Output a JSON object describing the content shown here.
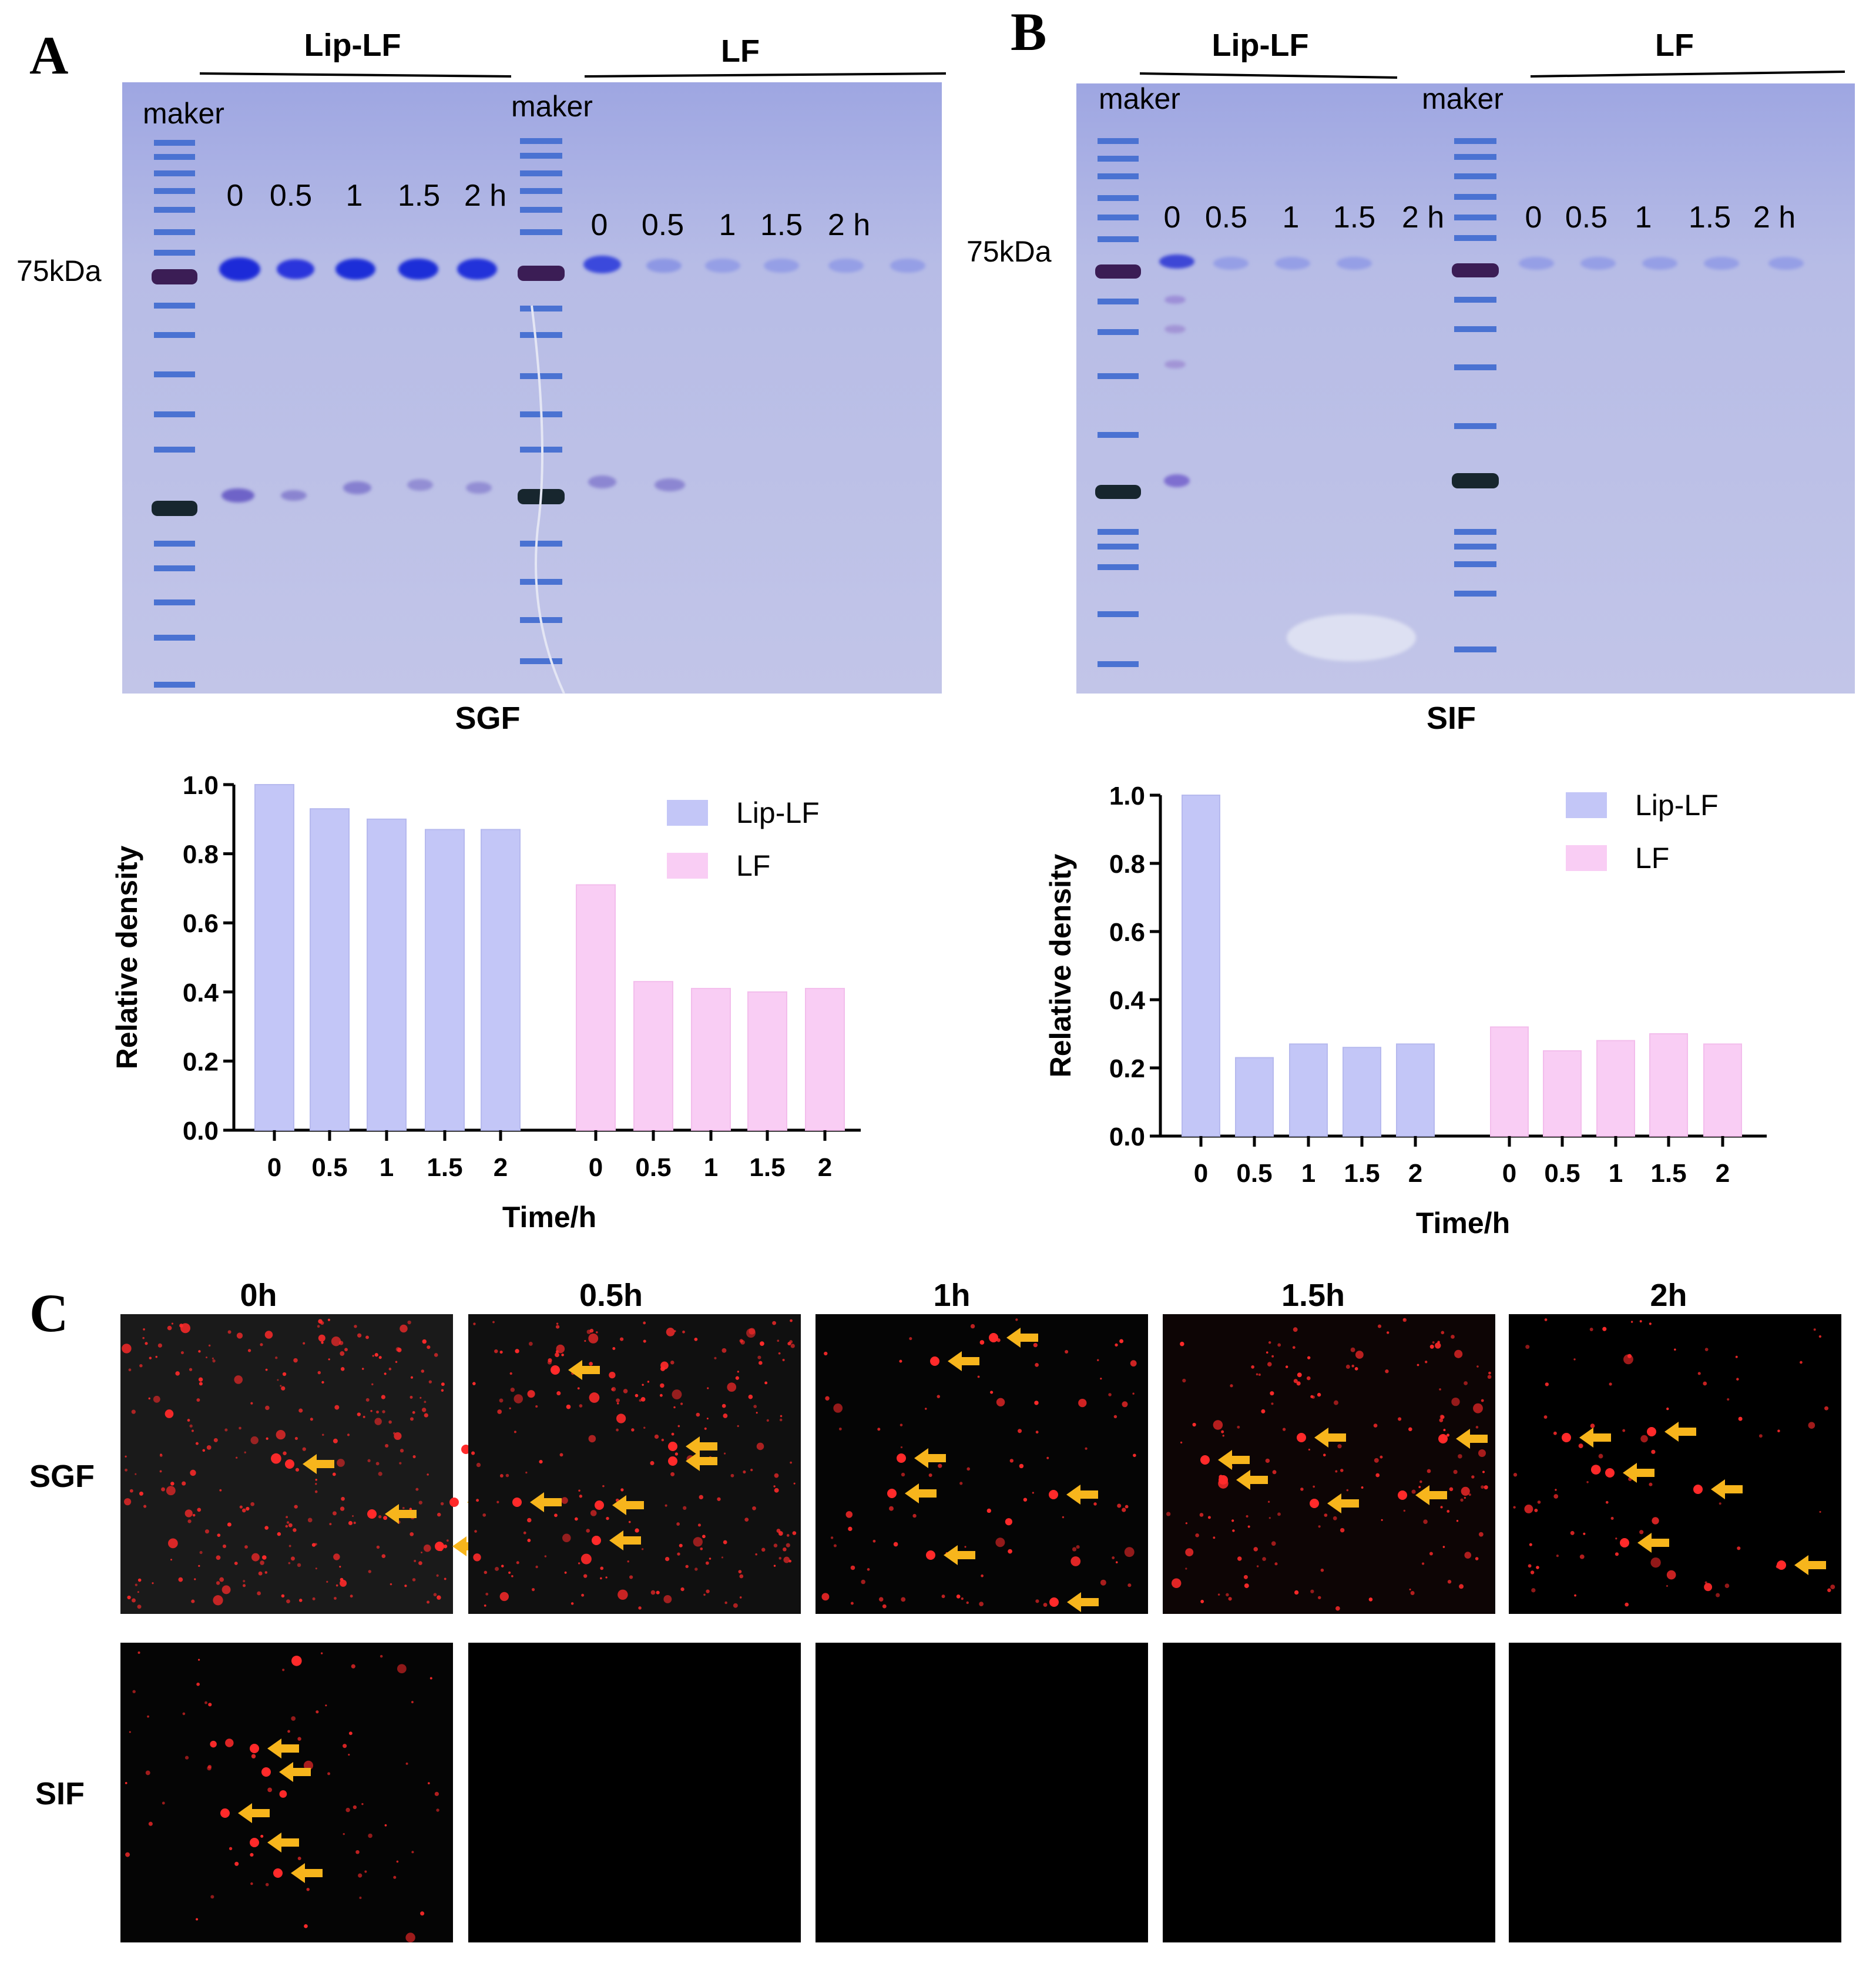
{
  "panels": {
    "A": {
      "letter": "A",
      "gel": {
        "group_labels": [
          "Lip-LF",
          "LF"
        ],
        "marker_labels": [
          "maker",
          "maker"
        ],
        "lane_labels_1": [
          "0",
          "0.5",
          "1",
          "1.5",
          "2 h"
        ],
        "lane_labels_2": [
          "0",
          "0.5",
          "1",
          "1.5",
          "2 h"
        ],
        "mw_label": "75kDa",
        "caption": "SGF"
      }
    },
    "B": {
      "letter": "B",
      "gel": {
        "group_labels": [
          "Lip-LF",
          "LF"
        ],
        "marker_labels": [
          "maker",
          "maker"
        ],
        "lane_labels_1": [
          "0",
          "0.5",
          "1",
          "1.5",
          "2 h"
        ],
        "lane_labels_2": [
          "0",
          "0.5",
          "1",
          "1.5",
          "2 h"
        ],
        "mw_label": "75kDa",
        "caption": "SIF"
      }
    },
    "C": {
      "letter": "C",
      "time_labels": [
        "0h",
        "0.5h",
        "1h",
        "1.5h",
        "2h"
      ],
      "row_labels": [
        "SGF",
        "SIF"
      ]
    }
  },
  "colors": {
    "lip_lf": "#c3c6f7",
    "lf": "#f9cdf4",
    "gel_bg": "#aab0e0",
    "marker_band": "#3a5fc8",
    "fluor_red": "#ff2a2a",
    "arrow": "#f7b51c"
  },
  "chart_data": [
    {
      "type": "bar",
      "panel": "A",
      "categories": [
        "0",
        "0.5",
        "1",
        "1.5",
        "2",
        "0",
        "0.5",
        "1",
        "1.5",
        "2"
      ],
      "series": [
        {
          "name": "Lip-LF",
          "values": [
            1.0,
            0.93,
            0.9,
            0.87,
            0.87,
            null,
            null,
            null,
            null,
            null
          ]
        },
        {
          "name": "LF",
          "values": [
            null,
            null,
            null,
            null,
            null,
            0.71,
            0.43,
            0.41,
            0.4,
            0.41
          ]
        }
      ],
      "xlabel": "Time/h",
      "ylabel": "Relative density",
      "ylim": [
        0,
        1.0
      ],
      "yticks": [
        "0.0",
        "0.2",
        "0.4",
        "0.6",
        "0.8",
        "1.0"
      ],
      "legend": "top-right",
      "grid": false
    },
    {
      "type": "bar",
      "panel": "B",
      "categories": [
        "0",
        "0.5",
        "1",
        "1.5",
        "2",
        "0",
        "0.5",
        "1",
        "1.5",
        "2"
      ],
      "series": [
        {
          "name": "Lip-LF",
          "values": [
            1.0,
            0.23,
            0.27,
            0.26,
            0.27,
            null,
            null,
            null,
            null,
            null
          ]
        },
        {
          "name": "LF",
          "values": [
            null,
            null,
            null,
            null,
            null,
            0.32,
            0.25,
            0.28,
            0.3,
            0.27
          ]
        }
      ],
      "xlabel": "Time/h",
      "ylabel": "Relative density",
      "ylim": [
        0,
        1.0
      ],
      "yticks": [
        "0.0",
        "0.2",
        "0.4",
        "0.6",
        "0.8",
        "1.0"
      ],
      "legend": "top-right",
      "grid": false
    }
  ]
}
